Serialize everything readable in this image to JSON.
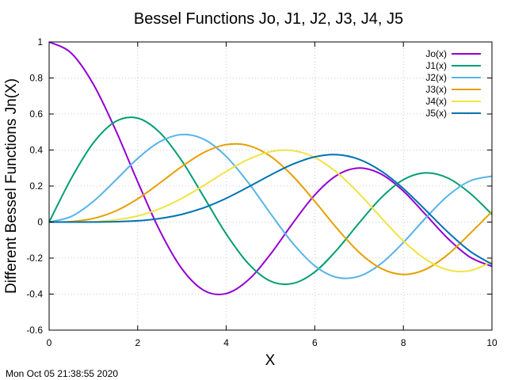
{
  "chart_data": {
    "type": "line",
    "title": "Bessel Functions Jo, J1, J2, J3, J4, J5",
    "xlabel": "X",
    "ylabel": "Different Bessel Functions Jn(X)",
    "xlim": [
      0,
      10
    ],
    "ylim": [
      -0.6,
      1
    ],
    "xticks": [
      0,
      2,
      4,
      6,
      8,
      10
    ],
    "yticks": [
      -0.6,
      -0.4,
      -0.2,
      0,
      0.2,
      0.4,
      0.6,
      0.8,
      1
    ],
    "grid": true,
    "legend_position": "top-right",
    "x": [
      0,
      0.5,
      1,
      1.5,
      2,
      2.5,
      3,
      3.5,
      4,
      4.5,
      5,
      5.5,
      6,
      6.5,
      7,
      7.5,
      8,
      8.5,
      9,
      9.5,
      10
    ],
    "series": [
      {
        "name": "Jo(x)",
        "color": "#9400d3",
        "values": [
          1.0,
          0.938,
          0.765,
          0.512,
          0.224,
          -0.048,
          -0.26,
          -0.38,
          -0.397,
          -0.321,
          -0.178,
          -0.007,
          0.151,
          0.26,
          0.3,
          0.266,
          0.172,
          0.042,
          -0.09,
          -0.194,
          -0.246
        ]
      },
      {
        "name": "J1(x)",
        "color": "#009e73",
        "values": [
          0.0,
          0.242,
          0.44,
          0.558,
          0.577,
          0.497,
          0.339,
          0.137,
          -0.066,
          -0.231,
          -0.328,
          -0.341,
          -0.277,
          -0.154,
          -0.005,
          0.135,
          0.235,
          0.273,
          0.245,
          0.161,
          0.043
        ]
      },
      {
        "name": "J2(x)",
        "color": "#56b4e9",
        "values": [
          0.0,
          0.031,
          0.115,
          0.232,
          0.353,
          0.446,
          0.486,
          0.459,
          0.364,
          0.218,
          0.047,
          -0.117,
          -0.243,
          -0.307,
          -0.301,
          -0.23,
          -0.113,
          0.022,
          0.145,
          0.228,
          0.255
        ]
      },
      {
        "name": "J3(x)",
        "color": "#e69f00",
        "values": [
          0.0,
          0.003,
          0.02,
          0.061,
          0.129,
          0.217,
          0.309,
          0.387,
          0.43,
          0.425,
          0.365,
          0.256,
          0.115,
          -0.035,
          -0.168,
          -0.258,
          -0.291,
          -0.263,
          -0.181,
          -0.065,
          0.058
        ]
      },
      {
        "name": "J4(x)",
        "color": "#f0e442",
        "values": [
          0.0,
          0.0,
          0.002,
          0.012,
          0.034,
          0.074,
          0.132,
          0.204,
          0.281,
          0.348,
          0.391,
          0.397,
          0.358,
          0.275,
          0.158,
          0.024,
          -0.105,
          -0.206,
          -0.265,
          -0.27,
          -0.22
        ]
      },
      {
        "name": "J5(x)",
        "color": "#0072b2",
        "values": [
          0.0,
          0.0,
          0.0,
          0.002,
          0.007,
          0.02,
          0.043,
          0.08,
          0.132,
          0.195,
          0.261,
          0.321,
          0.362,
          0.374,
          0.348,
          0.283,
          0.186,
          0.067,
          -0.055,
          -0.161,
          -0.234
        ]
      }
    ]
  },
  "timestamp": "Mon Oct 05 21:38:55 2020"
}
